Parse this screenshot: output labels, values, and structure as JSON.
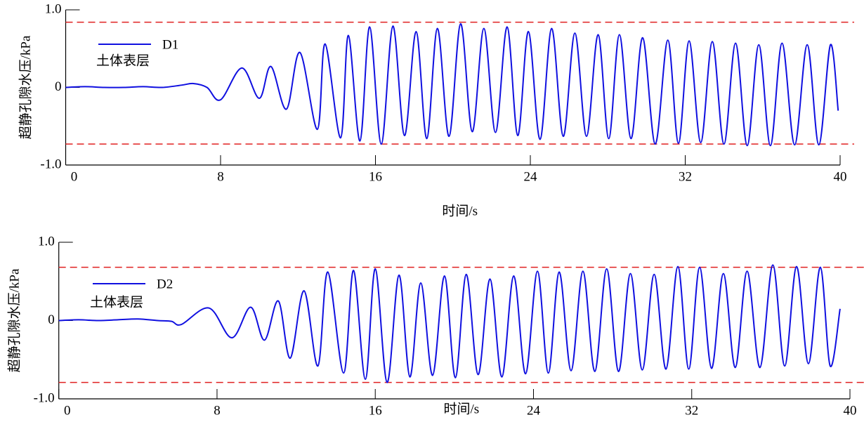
{
  "chart_data": [
    {
      "type": "line",
      "xlabel": "时间/s",
      "ylabel": "超静孔隙水压/kPa",
      "annotation": "土体表层",
      "legend": "upper left",
      "xlim": [
        0,
        40
      ],
      "ylim": [
        -1,
        1
      ],
      "xticks": [
        0,
        8,
        16,
        24,
        32,
        40
      ],
      "yticks": [
        {
          "value": -1,
          "label": "-1.0"
        },
        0,
        {
          "value": 1,
          "label": "1.0"
        }
      ],
      "reference_lines": {
        "values": [
          0.84,
          -0.73
        ],
        "color": "#e02020"
      },
      "x": [
        0,
        1,
        2,
        3,
        4,
        5,
        6,
        6.6,
        7.3,
        8.0,
        9.1,
        10.0,
        10.6,
        11.4,
        12.1,
        13.0,
        13.4,
        14.2,
        14.6,
        15.2,
        15.7,
        16.3,
        16.9,
        17.5,
        18.1,
        18.65,
        19.2,
        19.8,
        20.4,
        21.0,
        21.6,
        22.2,
        22.8,
        23.35,
        23.9,
        24.5,
        25.1,
        25.7,
        26.3,
        26.9,
        27.5,
        28.05,
        28.6,
        29.2,
        29.8,
        30.45,
        31.1,
        31.65,
        32.2,
        32.8,
        33.4,
        34.0,
        34.6,
        35.2,
        35.8,
        36.4,
        37.0,
        37.65,
        38.3,
        38.9,
        39.5,
        39.9
      ],
      "series": [
        {
          "name": "D1",
          "color": "#1010e0",
          "values": [
            0,
            0.01,
            0,
            0,
            0.01,
            0,
            0.03,
            0.05,
            0,
            -0.16,
            0.25,
            -0.14,
            0.27,
            -0.28,
            0.45,
            -0.54,
            0.56,
            -0.65,
            0.67,
            -0.69,
            0.78,
            -0.73,
            0.79,
            -0.62,
            0.72,
            -0.66,
            0.76,
            -0.63,
            0.82,
            -0.57,
            0.76,
            -0.58,
            0.78,
            -0.62,
            0.72,
            -0.67,
            0.76,
            -0.63,
            0.7,
            -0.63,
            0.68,
            -0.66,
            0.68,
            -0.66,
            0.64,
            -0.73,
            0.61,
            -0.72,
            0.6,
            -0.71,
            0.59,
            -0.73,
            0.57,
            -0.75,
            0.55,
            -0.75,
            0.57,
            -0.74,
            0.55,
            -0.74,
            0.55,
            -0.3
          ]
        }
      ]
    },
    {
      "type": "line",
      "xlabel": "时间/s",
      "ylabel": "超静孔隙水压/kPa",
      "annotation": "土体表层",
      "legend": "upper left",
      "xlim": [
        0,
        40
      ],
      "ylim": [
        -1,
        1
      ],
      "xticks": [
        0,
        8,
        16,
        24,
        32,
        40
      ],
      "yticks": [
        {
          "value": -1,
          "label": "-1.0"
        },
        0,
        {
          "value": 1,
          "label": "1.0"
        }
      ],
      "reference_lines": {
        "values": [
          0.68,
          -0.79
        ],
        "color": "#e02020"
      },
      "x": [
        0,
        1,
        2,
        3,
        4,
        5,
        5.7,
        6.2,
        7.6,
        8.75,
        9.7,
        10.4,
        11.1,
        11.7,
        12.4,
        13.1,
        13.6,
        14.4,
        14.9,
        15.5,
        16.0,
        16.6,
        17.2,
        17.75,
        18.3,
        18.9,
        19.5,
        20.05,
        20.6,
        21.2,
        21.8,
        22.4,
        23.0,
        23.6,
        24.2,
        24.75,
        25.3,
        25.9,
        26.5,
        27.1,
        27.7,
        28.3,
        28.9,
        29.5,
        30.1,
        30.7,
        31.3,
        31.85,
        32.4,
        33.0,
        33.6,
        34.2,
        34.8,
        35.45,
        36.1,
        36.7,
        37.3,
        37.9,
        38.5,
        39.0,
        39.5
      ],
      "series": [
        {
          "name": "D2",
          "color": "#1010e0",
          "values": [
            0,
            0.01,
            0,
            0.01,
            0.02,
            0,
            -0.01,
            -0.05,
            0.16,
            -0.22,
            0.17,
            -0.25,
            0.25,
            -0.48,
            0.38,
            -0.58,
            0.62,
            -0.67,
            0.64,
            -0.75,
            0.66,
            -0.79,
            0.58,
            -0.72,
            0.48,
            -0.7,
            0.57,
            -0.73,
            0.59,
            -0.69,
            0.53,
            -0.72,
            0.57,
            -0.68,
            0.63,
            -0.67,
            0.62,
            -0.64,
            0.63,
            -0.65,
            0.66,
            -0.65,
            0.6,
            -0.63,
            0.59,
            -0.62,
            0.69,
            -0.62,
            0.68,
            -0.61,
            0.6,
            -0.6,
            0.63,
            -0.6,
            0.71,
            -0.58,
            0.69,
            -0.55,
            0.68,
            -0.58,
            0.15
          ]
        }
      ]
    }
  ]
}
